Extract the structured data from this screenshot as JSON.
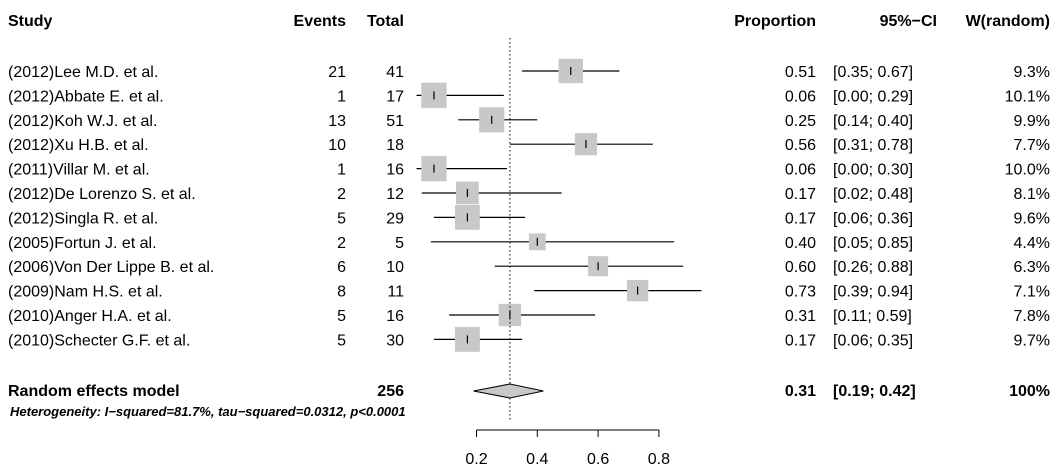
{
  "headers": {
    "study": "Study",
    "events": "Events",
    "total": "Total",
    "proportion": "Proportion",
    "ci": "95%−CI",
    "weight": "W(random)"
  },
  "summary": {
    "label": "Random effects model",
    "total": "256",
    "proportion": "0.31",
    "ci": "[0.19; 0.42]",
    "weight": "100%"
  },
  "heterogeneity": "Heterogeneity: I−squared=81.7%, tau−squared=0.0312, p<0.0001",
  "colors": {
    "box": "#c8c8c8",
    "diamond": "#c8c8c8",
    "line": "#000000"
  },
  "chart_data": {
    "type": "forest",
    "xlim": [
      0.2,
      0.8
    ],
    "xticks": [
      "0.2",
      "0.4",
      "0.6",
      "0.8"
    ],
    "reference_line": 0.31,
    "studies": [
      {
        "study": "(2012)Lee M.D. et al.",
        "events": "21",
        "total": "41",
        "proportion": "0.51",
        "ci": "[0.35; 0.67]",
        "weight": "9.3%",
        "p": 0.51,
        "lo": 0.35,
        "hi": 0.67,
        "w": 9.3
      },
      {
        "study": "(2012)Abbate E. et al.",
        "events": "1",
        "total": "17",
        "proportion": "0.06",
        "ci": "[0.00; 0.29]",
        "weight": "10.1%",
        "p": 0.06,
        "lo": 0.0,
        "hi": 0.29,
        "w": 10.1
      },
      {
        "study": "(2012)Koh W.J. et al.",
        "events": "13",
        "total": "51",
        "proportion": "0.25",
        "ci": "[0.14; 0.40]",
        "weight": "9.9%",
        "p": 0.25,
        "lo": 0.14,
        "hi": 0.4,
        "w": 9.9
      },
      {
        "study": "(2012)Xu H.B. et al.",
        "events": "10",
        "total": "18",
        "proportion": "0.56",
        "ci": "[0.31; 0.78]",
        "weight": "7.7%",
        "p": 0.56,
        "lo": 0.31,
        "hi": 0.78,
        "w": 7.7
      },
      {
        "study": "(2011)Villar M. et al.",
        "events": "1",
        "total": "16",
        "proportion": "0.06",
        "ci": "[0.00; 0.30]",
        "weight": "10.0%",
        "p": 0.06,
        "lo": 0.0,
        "hi": 0.3,
        "w": 10.0
      },
      {
        "study": "(2012)De Lorenzo S. et al.",
        "events": "2",
        "total": "12",
        "proportion": "0.17",
        "ci": "[0.02; 0.48]",
        "weight": "8.1%",
        "p": 0.17,
        "lo": 0.02,
        "hi": 0.48,
        "w": 8.1
      },
      {
        "study": "(2012)Singla R. et al.",
        "events": "5",
        "total": "29",
        "proportion": "0.17",
        "ci": "[0.06; 0.36]",
        "weight": "9.6%",
        "p": 0.17,
        "lo": 0.06,
        "hi": 0.36,
        "w": 9.6
      },
      {
        "study": "(2005)Fortun J. et al.",
        "events": "2",
        "total": "5",
        "proportion": "0.40",
        "ci": "[0.05; 0.85]",
        "weight": "4.4%",
        "p": 0.4,
        "lo": 0.05,
        "hi": 0.85,
        "w": 4.4
      },
      {
        "study": "(2006)Von Der Lippe B. et al.",
        "events": "6",
        "total": "10",
        "proportion": "0.60",
        "ci": "[0.26; 0.88]",
        "weight": "6.3%",
        "p": 0.6,
        "lo": 0.26,
        "hi": 0.88,
        "w": 6.3
      },
      {
        "study": "(2009)Nam H.S. et al.",
        "events": "8",
        "total": "11",
        "proportion": "0.73",
        "ci": "[0.39; 0.94]",
        "weight": "7.1%",
        "p": 0.73,
        "lo": 0.39,
        "hi": 0.94,
        "w": 7.1
      },
      {
        "study": "(2010)Anger H.A. et al.",
        "events": "5",
        "total": "16",
        "proportion": "0.31",
        "ci": "[0.11; 0.59]",
        "weight": "7.8%",
        "p": 0.31,
        "lo": 0.11,
        "hi": 0.59,
        "w": 7.8
      },
      {
        "study": "(2010)Schecter G.F. et al.",
        "events": "5",
        "total": "30",
        "proportion": "0.17",
        "ci": "[0.06; 0.35]",
        "weight": "9.7%",
        "p": 0.17,
        "lo": 0.06,
        "hi": 0.35,
        "w": 9.7
      }
    ],
    "pooled": {
      "p": 0.31,
      "lo": 0.19,
      "hi": 0.42
    }
  }
}
